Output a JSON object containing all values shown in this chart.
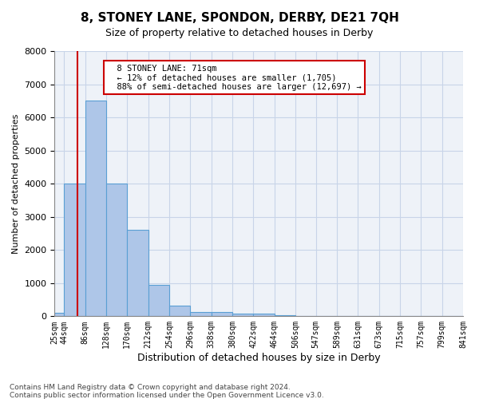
{
  "title": "8, STONEY LANE, SPONDON, DERBY, DE21 7QH",
  "subtitle": "Size of property relative to detached houses in Derby",
  "xlabel": "Distribution of detached houses by size in Derby",
  "ylabel": "Number of detached properties",
  "footer_line1": "Contains HM Land Registry data © Crown copyright and database right 2024.",
  "footer_line2": "Contains public sector information licensed under the Open Government Licence v3.0.",
  "annotation_line1": "8 STONEY LANE: 71sqm",
  "annotation_line2": "← 12% of detached houses are smaller (1,705)",
  "annotation_line3": "88% of semi-detached houses are larger (12,697) →",
  "property_size": 71,
  "bin_edges": [
    25,
    44,
    86,
    128,
    170,
    212,
    254,
    296,
    338,
    380,
    422,
    464,
    506,
    547,
    589,
    631,
    673,
    715,
    757,
    799,
    841
  ],
  "bar_values": [
    100,
    4000,
    6500,
    4000,
    2600,
    950,
    320,
    130,
    120,
    90,
    80,
    30,
    10,
    5,
    3,
    2,
    1,
    1,
    0,
    0
  ],
  "bar_color": "#aec6e8",
  "bar_edge_color": "#5a9fd4",
  "vline_color": "#cc0000",
  "annotation_box_color": "#cc0000",
  "grid_color": "#c8d4e8",
  "background_color": "#eef2f8",
  "ylim": [
    0,
    8000
  ],
  "yticks": [
    0,
    1000,
    2000,
    3000,
    4000,
    5000,
    6000,
    7000,
    8000
  ]
}
